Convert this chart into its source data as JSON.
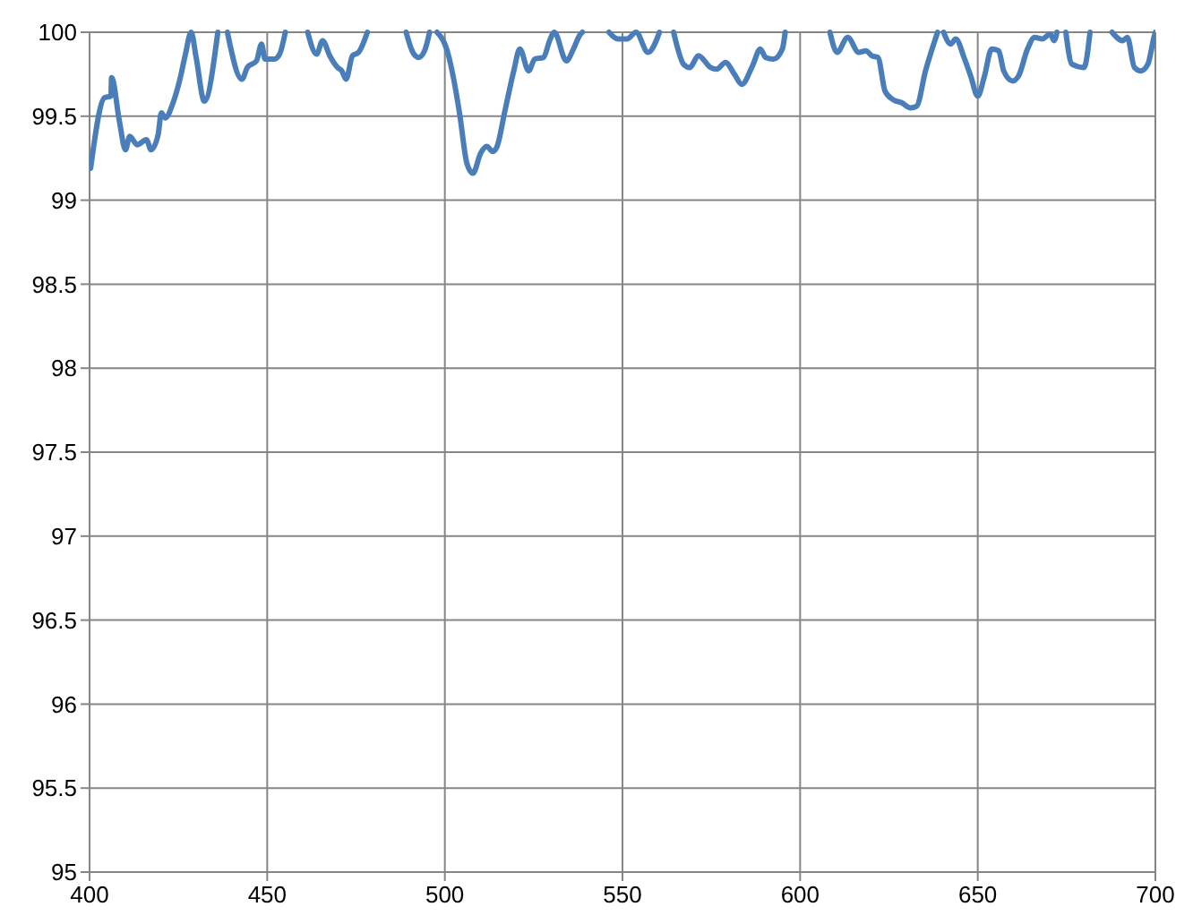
{
  "chart_data": {
    "type": "line",
    "xlim": [
      400,
      700
    ],
    "ylim": [
      95,
      100
    ],
    "xticks": [
      400,
      450,
      500,
      550,
      600,
      650,
      700
    ],
    "yticks": [
      95,
      95.5,
      96,
      96.5,
      97,
      97.5,
      98,
      98.5,
      99,
      99.5,
      100
    ],
    "grid": true,
    "marker": "none",
    "line_style": "solid",
    "series": [
      {
        "color": "#4a7ebb",
        "x": [
          400.3,
          404.2,
          406,
          406.2,
          408.4,
          410.1,
          411.3,
          413.4,
          416,
          417.3,
          419.3,
          420.2,
          421.3,
          423.5,
          425.2,
          426.9,
          428.6,
          430,
          432.3,
          436.1,
          437,
          438.8,
          442.9,
          444.4,
          447,
          448.4,
          449.4,
          452,
          453.5,
          455.1,
          458,
          461.4,
          463.9,
          465.6,
          467.6,
          469.8,
          471,
          472.2,
          474,
          475.7,
          478.2,
          484,
          489.1,
          491,
          492.6,
          494.3,
          495.7,
          497,
          497.8,
          500.8,
          502.5,
          504.2,
          506.2,
          507.9,
          510.1,
          511.8,
          513.5,
          514.7,
          516.9,
          519.4,
          521.1,
          523.6,
          525.3,
          527.8,
          529.5,
          530.8,
          534.2,
          536.2,
          537.9,
          538.7,
          542,
          546.2,
          548.7,
          551.3,
          553.8,
          557.2,
          559.7,
          560.4,
          562,
          564.4,
          567.2,
          568.9,
          571.4,
          574.8,
          576.5,
          579,
          581.5,
          583.6,
          586.6,
          588.8,
          590.3,
          592.5,
          595,
          595.8,
          602,
          608.4,
          610.4,
          613.4,
          616.5,
          618.5,
          620.2,
          621.9,
          623.9,
          626.1,
          628.6,
          631.1,
          632.8,
          635.3,
          638.7,
          639.5,
          640.4,
          642.4,
          643.8,
          646.3,
          648,
          650,
          651.9,
          653.9,
          655.9,
          657.3,
          659.8,
          661.5,
          664,
          666,
          668.2,
          670.4,
          671.5,
          672.3,
          673.5,
          674.8,
          676.5,
          679.9,
          681.6,
          684,
          687.8,
          690.8,
          692.1,
          694.1,
          695.9,
          697.9,
          699.6,
          700
        ],
        "values": [
          99.19,
          99.61,
          99.62,
          99.73,
          99.47,
          99.3,
          99.38,
          99.33,
          99.36,
          99.3,
          99.39,
          99.52,
          99.49,
          99.58,
          99.7,
          99.86,
          100,
          99.85,
          99.59,
          100,
          null,
          100,
          99.72,
          99.79,
          99.83,
          99.93,
          99.84,
          99.84,
          99.87,
          100,
          null,
          100,
          99.87,
          99.95,
          99.86,
          99.79,
          99.77,
          99.72,
          99.86,
          99.88,
          100,
          null,
          100,
          99.88,
          99.85,
          99.89,
          100,
          null,
          100,
          99.88,
          99.72,
          99.51,
          99.22,
          99.16,
          99.28,
          99.32,
          99.29,
          99.32,
          99.53,
          99.77,
          99.9,
          99.77,
          99.84,
          99.85,
          99.95,
          100,
          99.83,
          99.9,
          99.98,
          100,
          null,
          100,
          99.96,
          99.96,
          100,
          99.88,
          99.96,
          100,
          null,
          100,
          99.81,
          99.79,
          99.86,
          99.79,
          99.78,
          99.82,
          99.75,
          99.69,
          99.8,
          99.9,
          99.85,
          99.84,
          99.9,
          100,
          null,
          100,
          99.88,
          99.97,
          99.88,
          99.89,
          99.86,
          99.85,
          99.65,
          99.6,
          99.58,
          99.55,
          99.56,
          99.77,
          100,
          null,
          100,
          99.93,
          99.96,
          99.84,
          99.74,
          99.62,
          99.74,
          99.9,
          99.89,
          99.77,
          99.71,
          99.74,
          99.9,
          99.97,
          99.96,
          99.99,
          99.95,
          100,
          null,
          100,
          99.81,
          99.79,
          100,
          null,
          100,
          99.95,
          99.97,
          99.79,
          99.77,
          99.81,
          99.97,
          100
        ]
      }
    ]
  }
}
